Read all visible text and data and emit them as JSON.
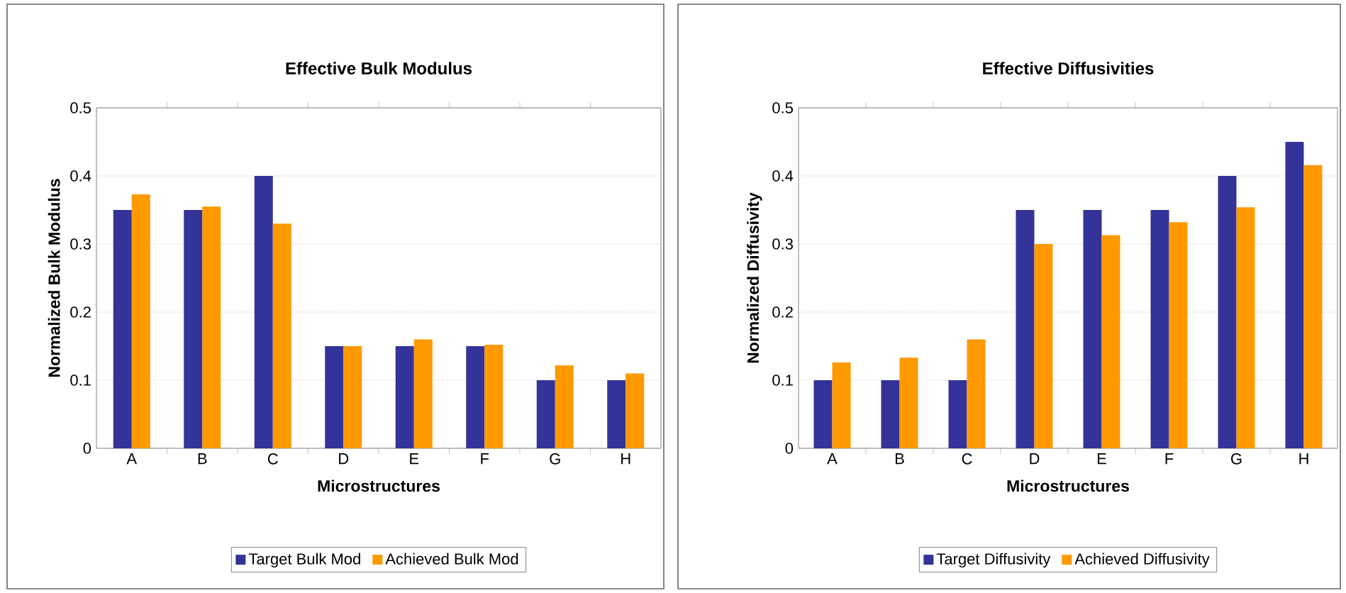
{
  "chart_data": [
    {
      "type": "bar",
      "title": "Effective Bulk Modulus",
      "xlabel": "Microstructures",
      "ylabel": "Normalized Bulk Modulus",
      "categories": [
        "A",
        "B",
        "C",
        "D",
        "E",
        "F",
        "G",
        "H"
      ],
      "series": [
        {
          "name": "Target Bulk Mod",
          "color": "#333399",
          "values": [
            0.35,
            0.35,
            0.4,
            0.15,
            0.15,
            0.15,
            0.1,
            0.1
          ]
        },
        {
          "name": "Achieved Bulk Mod",
          "color": "#ff9900",
          "values": [
            0.373,
            0.355,
            0.33,
            0.15,
            0.16,
            0.152,
            0.122,
            0.11
          ]
        }
      ],
      "ylim": [
        0,
        0.5
      ],
      "yticks": [
        0,
        0.1,
        0.2,
        0.3,
        0.4,
        0.5
      ],
      "grid": "y",
      "legend": "bottom"
    },
    {
      "type": "bar",
      "title": "Effective Diffusivities",
      "xlabel": "Microstructures",
      "ylabel": "Normalized Diffusivity",
      "categories": [
        "A",
        "B",
        "C",
        "D",
        "E",
        "F",
        "G",
        "H"
      ],
      "series": [
        {
          "name": "Target Diffusivity",
          "color": "#333399",
          "values": [
            0.1,
            0.1,
            0.1,
            0.35,
            0.35,
            0.35,
            0.4,
            0.45
          ]
        },
        {
          "name": "Achieved Diffusivity",
          "color": "#ff9900",
          "values": [
            0.126,
            0.133,
            0.16,
            0.3,
            0.313,
            0.332,
            0.354,
            0.416
          ]
        }
      ],
      "ylim": [
        0,
        0.5
      ],
      "yticks": [
        0,
        0.1,
        0.2,
        0.3,
        0.4,
        0.5
      ],
      "grid": "y",
      "legend": "bottom"
    }
  ]
}
